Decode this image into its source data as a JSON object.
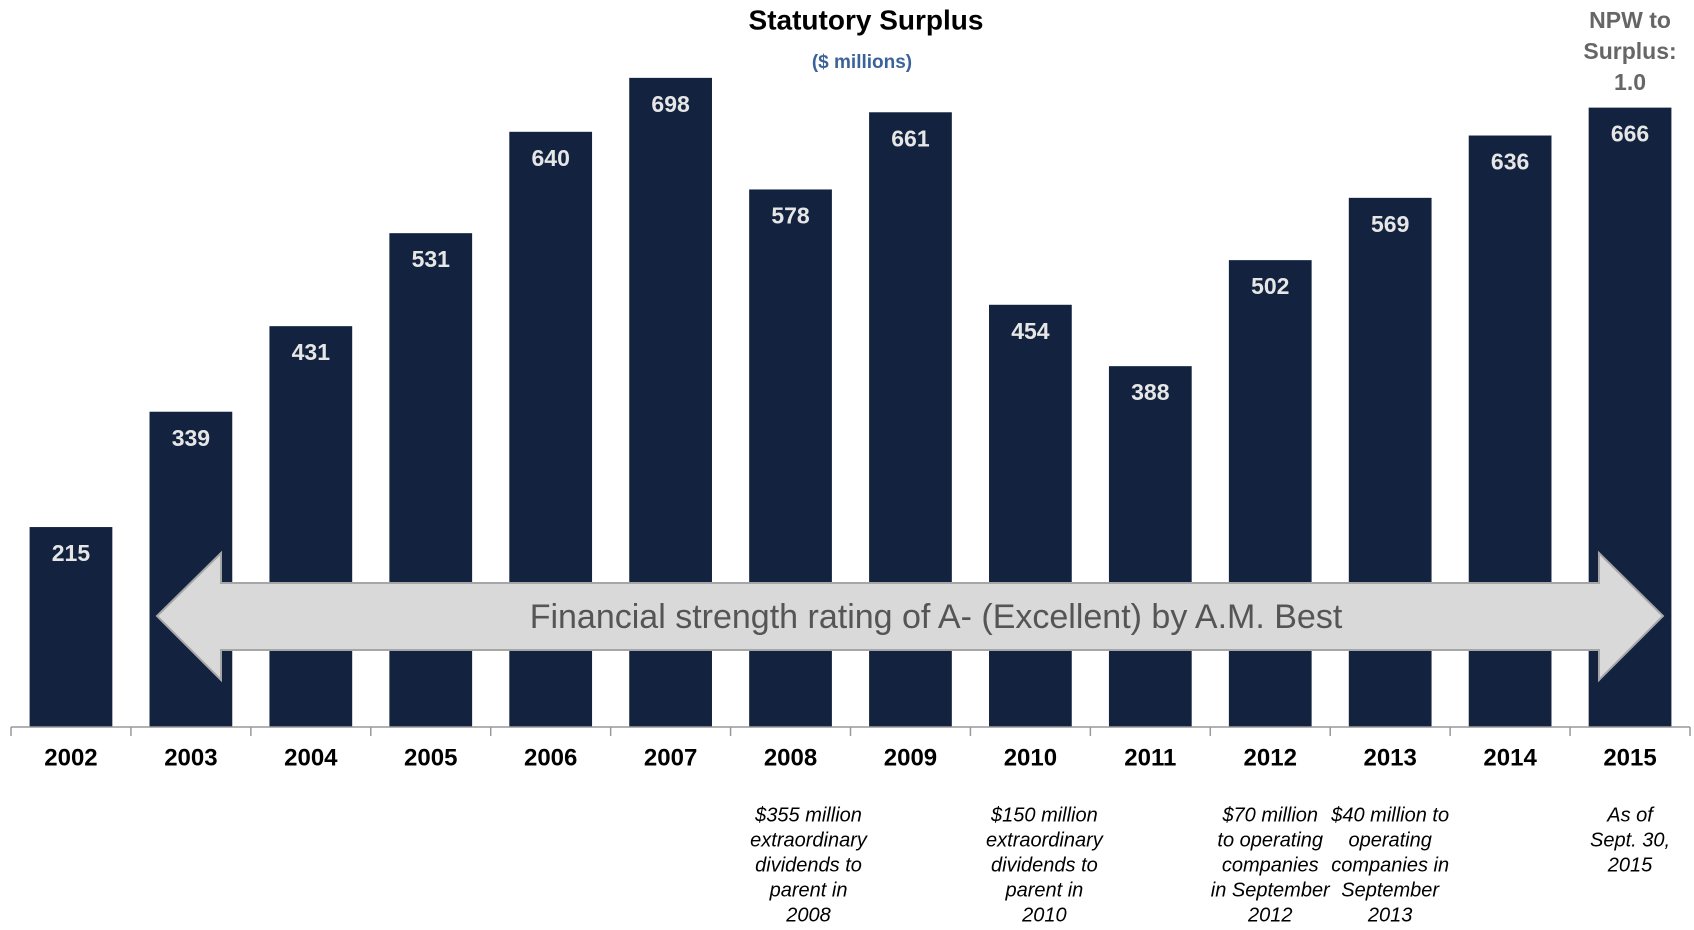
{
  "chart_data": {
    "type": "bar",
    "title": "Statutory Surplus",
    "subtitle": "($ millions)",
    "categories": [
      "2002",
      "2003",
      "2004",
      "2005",
      "2006",
      "2007",
      "2008",
      "2009",
      "2010",
      "2011",
      "2012",
      "2013",
      "2014",
      "2015"
    ],
    "values": [
      215,
      339,
      431,
      531,
      640,
      698,
      578,
      661,
      454,
      388,
      502,
      569,
      636,
      666
    ],
    "color": "#13233f",
    "arrow_text": "Financial strength rating of A- (Excellent) by A.M. Best",
    "corner_note": [
      "NPW to",
      "Surplus:",
      "1.0"
    ],
    "notes": [
      null,
      null,
      null,
      null,
      null,
      null,
      [
        "$355 million",
        "extraordinary",
        "dividends to",
        "parent in",
        "2008"
      ],
      null,
      [
        "$150 million",
        "extraordinary",
        "dividends to",
        "parent in",
        "2010"
      ],
      null,
      [
        "$70 million",
        "to operating",
        "companies",
        "in September",
        "2012"
      ],
      [
        "$40 million to",
        "operating",
        "companies in",
        "September",
        "2013"
      ],
      null,
      [
        "As of",
        "Sept. 30,",
        "2015"
      ]
    ]
  }
}
